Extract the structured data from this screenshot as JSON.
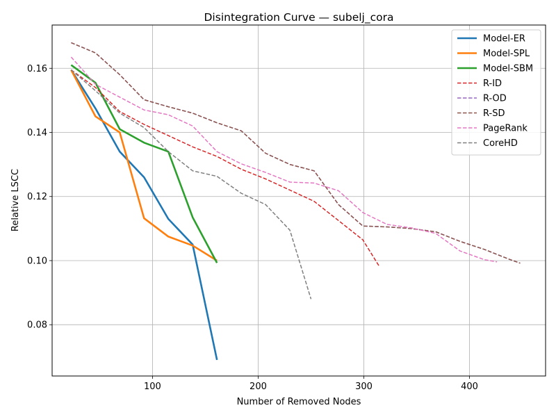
{
  "chart_data": {
    "type": "line",
    "title": "Disintegration Curve — subelj_cora",
    "xlabel": "Number of Removed Nodes",
    "ylabel": "Relative LSCC",
    "xlim": [
      5,
      472
    ],
    "ylim": [
      0.064,
      0.1735
    ],
    "xticks": [
      100,
      200,
      300,
      400
    ],
    "yticks": [
      0.08,
      0.1,
      0.12,
      0.14,
      0.16
    ],
    "ytick_labels": [
      "0.08",
      "0.10",
      "0.12",
      "0.14",
      "0.16"
    ],
    "grid": true,
    "legend_position": "top-right",
    "series": [
      {
        "name": "Model-ER",
        "color": "#1f77b4",
        "style": "solid",
        "x": [
          23,
          46,
          69,
          92,
          115,
          138,
          161
        ],
        "y": [
          0.1595,
          0.1475,
          0.134,
          0.126,
          0.113,
          0.105,
          0.069
        ]
      },
      {
        "name": "Model-SPL",
        "color": "#ff7f0e",
        "style": "solid",
        "x": [
          23,
          46,
          69,
          92,
          115,
          138,
          161
        ],
        "y": [
          0.1595,
          0.145,
          0.14,
          0.1132,
          0.1075,
          0.1047,
          0.1
        ]
      },
      {
        "name": "Model-SBM",
        "color": "#2ca02c",
        "style": "solid",
        "x": [
          23,
          46,
          69,
          92,
          115,
          138,
          161
        ],
        "y": [
          0.161,
          0.1555,
          0.141,
          0.1368,
          0.134,
          0.1135,
          0.0993
        ]
      },
      {
        "name": "R-ID",
        "color": "#d62728",
        "style": "dashed",
        "x": [
          23,
          46,
          69,
          92,
          115,
          138,
          161,
          184,
          207,
          230,
          253,
          276,
          299,
          315
        ],
        "y": [
          0.1595,
          0.154,
          0.1465,
          0.1425,
          0.139,
          0.1355,
          0.1325,
          0.1285,
          0.1255,
          0.122,
          0.1185,
          0.1125,
          0.1065,
          0.098
        ]
      },
      {
        "name": "R-OD",
        "color": "#9467bd",
        "style": "dashed",
        "x": [
          23,
          46,
          69,
          92,
          115,
          138,
          161,
          184,
          207,
          230,
          253,
          276,
          299,
          322,
          345,
          368,
          391,
          414,
          437,
          448
        ],
        "y": [
          0.168,
          0.1648,
          0.158,
          0.1502,
          0.148,
          0.146,
          0.143,
          0.1405,
          0.1335,
          0.13,
          0.128,
          0.1175,
          0.1108,
          0.1105,
          0.11,
          0.109,
          0.106,
          0.1035,
          0.1005,
          0.0992
        ]
      },
      {
        "name": "R-SD",
        "color": "#8c564b",
        "style": "dashed",
        "x": [
          23,
          46,
          69,
          92,
          115,
          138,
          161,
          184,
          207,
          230,
          253,
          276,
          299,
          322,
          345,
          368,
          391,
          414,
          437,
          448
        ],
        "y": [
          0.168,
          0.1648,
          0.158,
          0.1502,
          0.148,
          0.146,
          0.143,
          0.1405,
          0.1335,
          0.13,
          0.128,
          0.1175,
          0.1108,
          0.1105,
          0.11,
          0.109,
          0.106,
          0.1035,
          0.1005,
          0.0992
        ]
      },
      {
        "name": "PageRank",
        "color": "#e377c2",
        "style": "dashed",
        "x": [
          23,
          46,
          69,
          92,
          115,
          138,
          161,
          184,
          207,
          230,
          253,
          276,
          299,
          322,
          345,
          368,
          391,
          414,
          426
        ],
        "y": [
          0.1635,
          0.155,
          0.151,
          0.147,
          0.1455,
          0.142,
          0.134,
          0.1302,
          0.1275,
          0.1245,
          0.1242,
          0.1218,
          0.115,
          0.1113,
          0.1102,
          0.1085,
          0.103,
          0.1003,
          0.0996
        ]
      },
      {
        "name": "CoreHD",
        "color": "#7f7f7f",
        "style": "dashed",
        "x": [
          23,
          46,
          69,
          92,
          115,
          138,
          161,
          184,
          207,
          230,
          250
        ],
        "y": [
          0.1595,
          0.153,
          0.146,
          0.1415,
          0.134,
          0.128,
          0.1263,
          0.121,
          0.1175,
          0.1095,
          0.088
        ]
      }
    ]
  }
}
